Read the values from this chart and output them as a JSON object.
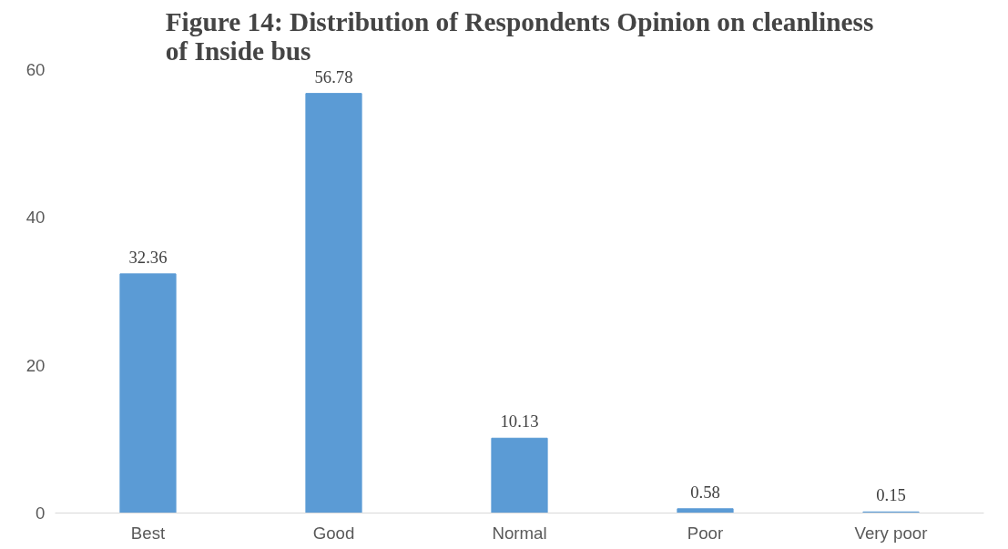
{
  "chart_data": {
    "type": "bar",
    "title": "Figure 14: Distribution of Respondents Opinion on cleanliness of Inside bus",
    "categories": [
      "Best",
      "Good",
      "Normal",
      "Poor",
      "Very poor"
    ],
    "values": [
      32.36,
      56.78,
      10.13,
      0.58,
      0.15
    ],
    "color": "#5b9bd5",
    "ylim": [
      0,
      60
    ],
    "yticks": [
      0,
      20,
      40,
      60
    ],
    "grid": false,
    "data_labels": true
  }
}
